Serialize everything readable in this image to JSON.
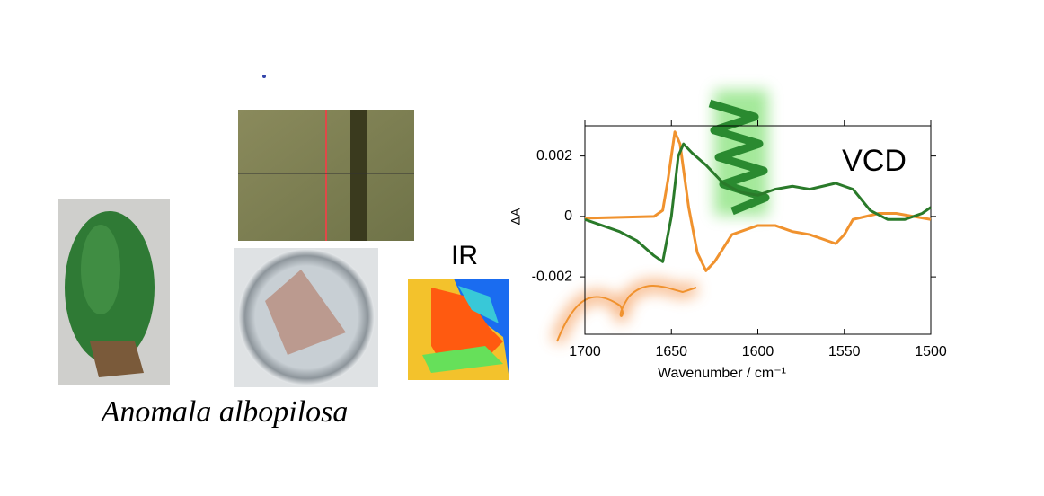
{
  "labels": {
    "species": "Anomala albopilosa",
    "ir": "IR"
  },
  "chart_data": {
    "type": "line",
    "annotations": [
      "VCD"
    ],
    "xlabel": "Wavenumber / cm⁻¹",
    "ylabel": "ΔA",
    "xlim": [
      1700,
      1500
    ],
    "xticks": [
      1700,
      1650,
      1600,
      1550,
      1500
    ],
    "ylim": [
      -0.0039,
      0.003
    ],
    "yticks": [
      -0.002,
      0,
      0.002
    ],
    "series": [
      {
        "name": "orange",
        "color": "#f0922e",
        "x": [
          1700,
          1680,
          1660,
          1655,
          1652,
          1648,
          1645,
          1640,
          1635,
          1630,
          1625,
          1615,
          1600,
          1590,
          1580,
          1570,
          1560,
          1555,
          1550,
          1545,
          1530,
          1520,
          1510,
          1500
        ],
        "values": [
          -6e-05,
          -3e-05,
          0,
          0.0002,
          0.0012,
          0.0028,
          0.0024,
          0.0003,
          -0.0012,
          -0.0018,
          -0.0015,
          -0.0006,
          -0.0003,
          -0.0003,
          -0.0005,
          -0.0006,
          -0.0008,
          -0.0009,
          -0.0006,
          -0.0001,
          0.0001,
          0.0001,
          0,
          -0.0001
        ]
      },
      {
        "name": "green",
        "color": "#2a7a2a",
        "x": [
          1700,
          1690,
          1680,
          1670,
          1660,
          1655,
          1650,
          1646,
          1643,
          1638,
          1630,
          1620,
          1610,
          1600,
          1590,
          1580,
          1570,
          1555,
          1545,
          1535,
          1525,
          1515,
          1505,
          1500
        ],
        "values": [
          -0.0001,
          -0.0003,
          -0.0005,
          -0.0008,
          -0.0013,
          -0.0015,
          0,
          0.002,
          0.0024,
          0.0021,
          0.0017,
          0.0011,
          0.0008,
          0.0007,
          0.0009,
          0.001,
          0.0009,
          0.0011,
          0.0009,
          0.0002,
          -0.0001,
          -0.0001,
          0.0001,
          0.0003
        ]
      }
    ]
  }
}
